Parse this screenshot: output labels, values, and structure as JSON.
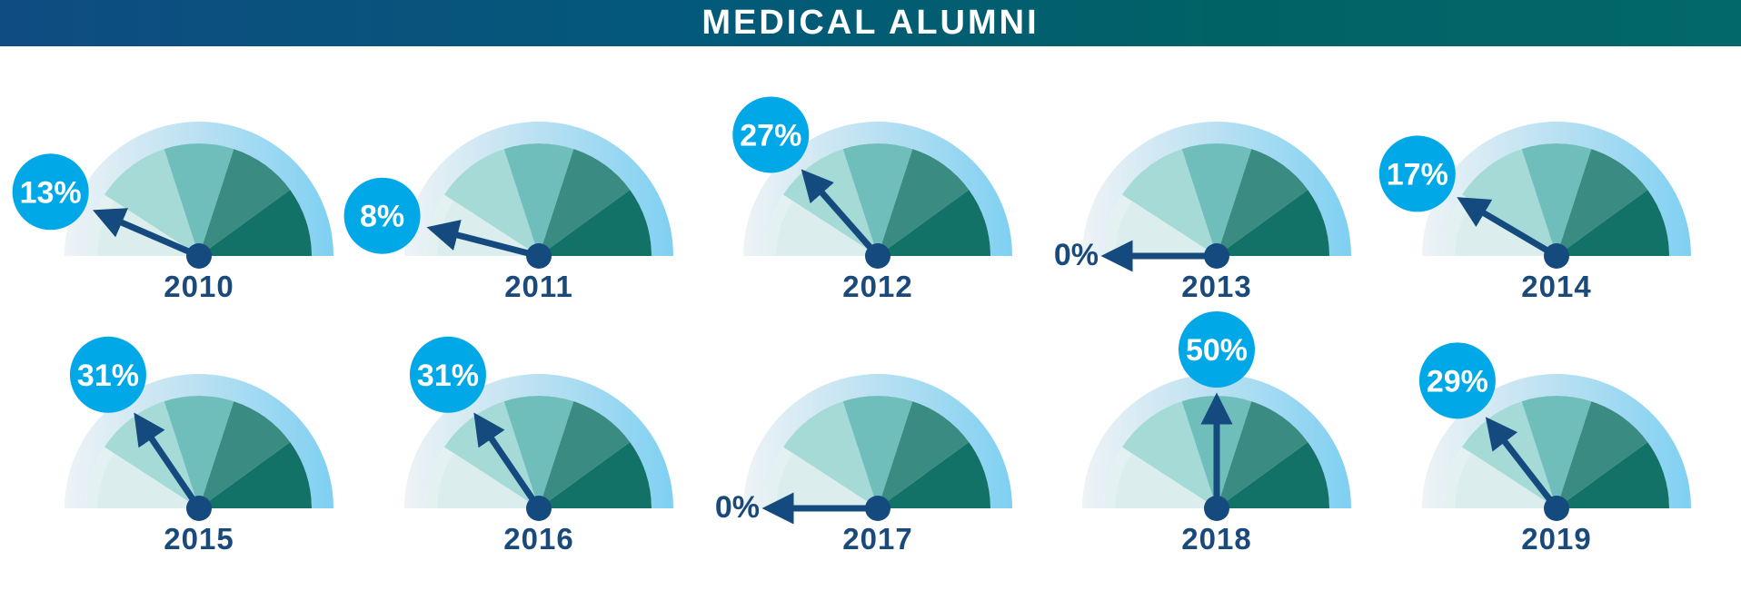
{
  "header": {
    "title": "MEDICAL ALUMNI"
  },
  "colors": {
    "banner_start": "#0f4c81",
    "banner_end": "#03686a",
    "arc": "#7fd0f2",
    "needle": "#154a7e",
    "bubble": "#00a8e8",
    "segment_1": "#a5dad7",
    "segment_2": "#70bebb",
    "segment_3": "#3a8c83",
    "segment_4": "#137268",
    "year_text": "#1a4a7a"
  },
  "chart_data": {
    "type": "gauge",
    "title": "MEDICAL ALUMNI",
    "unit": "%",
    "range": [
      0,
      100
    ],
    "categories": [
      "2010",
      "2011",
      "2012",
      "2013",
      "2014",
      "2015",
      "2016",
      "2017",
      "2018",
      "2019"
    ],
    "values": [
      13,
      8,
      27,
      0,
      17,
      31,
      31,
      0,
      50,
      29
    ],
    "labels": [
      "13%",
      "8%",
      "27%",
      "0%",
      "17%",
      "31%",
      "31%",
      "0%",
      "50%",
      "29%"
    ]
  }
}
